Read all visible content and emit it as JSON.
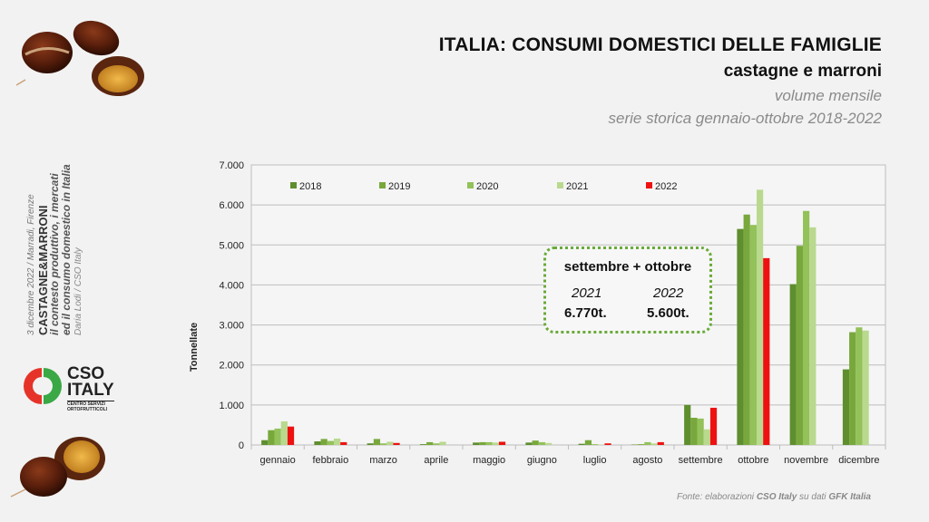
{
  "header": {
    "title": "ITALIA: CONSUMI DOMESTICI DELLE FAMIGLIE",
    "subtitle": "castagne e marroni",
    "subtitle2": "volume mensile",
    "subtitle3": "serie storica gennaio-ottobre 2018-2022"
  },
  "side": {
    "line1": "3 dicembre 2022 / Marradi, Firenze",
    "line2": "CASTAGNE&MARRONI",
    "line3": "il contesto produttivo, i mercati",
    "line4": "ed il consumo domestico in Italia",
    "line5": "Daria Lodi / CSO Italy"
  },
  "logo": {
    "big1": "CSO",
    "big2": "ITALY",
    "small1": "CENTRO SERVIZI",
    "small2": "ORTOFRUTTICOLI"
  },
  "callout": {
    "heading": "settembre + ottobre",
    "year_a": "2021",
    "value_a": "6.770t.",
    "year_b": "2022",
    "value_b": "5.600t."
  },
  "footer": {
    "prefix": "Fonte: elaborazioni ",
    "org": "CSO Italy",
    "mid": " su dati ",
    "source": "GFK Italia"
  },
  "colors": {
    "2018": "#5e8e2e",
    "2019": "#78a83c",
    "2020": "#93c15a",
    "2021": "#b9d98e",
    "2022": "#ee1111"
  },
  "chart_data": {
    "type": "bar",
    "ylabel": "Tonnellate",
    "ylim": [
      0,
      7000
    ],
    "yticks": [
      "0",
      "1.000",
      "2.000",
      "3.000",
      "4.000",
      "5.000",
      "6.000",
      "7.000"
    ],
    "grid": true,
    "legend_position": "top",
    "categories": [
      "gennaio",
      "febbraio",
      "marzo",
      "aprile",
      "maggio",
      "giugno",
      "luglio",
      "agosto",
      "settembre",
      "ottobre",
      "novembre",
      "dicembre"
    ],
    "series": [
      {
        "name": "2018",
        "values": [
          120,
          90,
          40,
          20,
          60,
          60,
          30,
          10,
          1000,
          5400,
          4020,
          1890
        ]
      },
      {
        "name": "2019",
        "values": [
          370,
          150,
          150,
          70,
          70,
          110,
          120,
          20,
          680,
          5760,
          4980,
          2820
        ]
      },
      {
        "name": "2020",
        "values": [
          410,
          100,
          40,
          40,
          70,
          70,
          20,
          70,
          660,
          5500,
          5850,
          2940
        ]
      },
      {
        "name": "2021",
        "values": [
          590,
          160,
          80,
          80,
          60,
          50,
          10,
          40,
          390,
          6380,
          5440,
          2860
        ]
      },
      {
        "name": "2022",
        "values": [
          460,
          70,
          50,
          0,
          80,
          0,
          40,
          70,
          930,
          4670,
          null,
          null
        ]
      }
    ]
  }
}
